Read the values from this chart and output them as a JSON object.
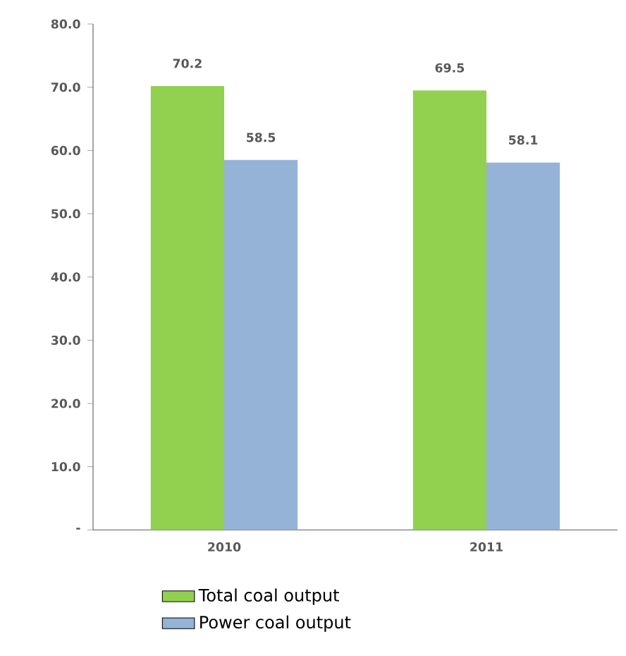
{
  "chart_data": {
    "type": "bar",
    "categories": [
      "2010",
      "2011"
    ],
    "series": [
      {
        "name": "Total coal output",
        "color": "#92d050",
        "values": [
          70.2,
          69.5
        ]
      },
      {
        "name": "Power coal output",
        "color": "#95b3d7",
        "values": [
          58.5,
          58.1
        ]
      }
    ],
    "ylim": [
      0,
      80
    ],
    "yticks": [
      {
        "value": 0,
        "label": "-"
      },
      {
        "value": 10,
        "label": "10.0"
      },
      {
        "value": 20,
        "label": "20.0"
      },
      {
        "value": 30,
        "label": "30.0"
      },
      {
        "value": 40,
        "label": "40.0"
      },
      {
        "value": 50,
        "label": "50.0"
      },
      {
        "value": 60,
        "label": "60.0"
      },
      {
        "value": 70,
        "label": "70.0"
      },
      {
        "value": 80,
        "label": "80.0"
      }
    ],
    "data_labels": true,
    "grid": false,
    "legend": "bottom"
  }
}
